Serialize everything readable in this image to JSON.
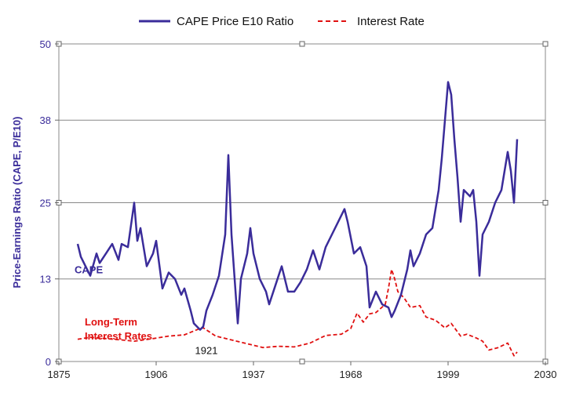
{
  "chart_data": {
    "type": "line",
    "title": "",
    "xlabel": "",
    "ylabel": "Price-Earnings Ratio (CAPE, P/E10)",
    "xlim": [
      1875,
      2030
    ],
    "ylim": [
      0,
      50
    ],
    "x_ticks": [
      "1875",
      "1906",
      "1937",
      "1968",
      "1999",
      "2030"
    ],
    "y_ticks": [
      "0",
      "13",
      "25",
      "38",
      "50"
    ],
    "grid": "horizontal",
    "legend_position": "top",
    "colors": {
      "cape": "#3a2c9a",
      "rate": "#e01010",
      "grid": "#888888"
    },
    "series": [
      {
        "name": "CAPE Price E10 Ratio",
        "style": "solid",
        "x": [
          1881,
          1882,
          1884,
          1885,
          1887,
          1888,
          1890,
          1892,
          1894,
          1895,
          1897,
          1899,
          1900,
          1901,
          1903,
          1905,
          1906,
          1908,
          1910,
          1912,
          1914,
          1915,
          1917,
          1918,
          1920,
          1921,
          1922,
          1924,
          1926,
          1928,
          1929,
          1930,
          1932,
          1933,
          1935,
          1936,
          1937,
          1939,
          1941,
          1942,
          1944,
          1946,
          1948,
          1950,
          1952,
          1954,
          1956,
          1958,
          1960,
          1962,
          1964,
          1966,
          1967,
          1969,
          1971,
          1973,
          1974,
          1976,
          1978,
          1980,
          1981,
          1982,
          1984,
          1986,
          1987,
          1988,
          1990,
          1992,
          1994,
          1996,
          1997,
          1998,
          1999,
          2000,
          2001,
          2002,
          2003,
          2004,
          2006,
          2007,
          2008,
          2009,
          2010,
          2012,
          2014,
          2016,
          2017,
          2018,
          2019,
          2020,
          2021
        ],
        "values": [
          18.5,
          16.5,
          14.5,
          13.5,
          17.0,
          15.5,
          17.0,
          18.5,
          16.0,
          18.5,
          18.0,
          25.0,
          19.0,
          21.0,
          15.0,
          17.0,
          19.0,
          11.5,
          14.0,
          13.0,
          10.5,
          11.5,
          8.0,
          6.0,
          5.0,
          5.5,
          8.0,
          10.5,
          13.5,
          20.0,
          32.5,
          20.0,
          6.0,
          13.0,
          17.0,
          21.0,
          17.0,
          13.0,
          11.0,
          9.0,
          12.0,
          15.0,
          11.0,
          11.0,
          12.5,
          14.5,
          17.5,
          14.5,
          18.0,
          20.0,
          22.0,
          24.0,
          22.0,
          17.0,
          18.0,
          15.0,
          8.5,
          11.0,
          9.0,
          8.5,
          7.0,
          8.0,
          10.5,
          14.5,
          17.5,
          15.0,
          17.0,
          20.0,
          21.0,
          27.0,
          32.0,
          38.0,
          44.0,
          42.0,
          35.0,
          29.0,
          22.0,
          27.0,
          26.0,
          27.0,
          22.0,
          13.5,
          20.0,
          22.0,
          25.0,
          27.0,
          30.0,
          33.0,
          30.0,
          25.0,
          35.0
        ]
      },
      {
        "name": "Interest Rate",
        "style": "dashed",
        "x": [
          1881,
          1885,
          1890,
          1895,
          1899,
          1905,
          1910,
          1915,
          1920,
          1921,
          1925,
          1930,
          1935,
          1940,
          1945,
          1950,
          1955,
          1960,
          1965,
          1968,
          1970,
          1972,
          1974,
          1976,
          1979,
          1980,
          1981,
          1982,
          1983,
          1985,
          1987,
          1990,
          1992,
          1995,
          1998,
          2000,
          2003,
          2005,
          2008,
          2010,
          2012,
          2015,
          2018,
          2020,
          2021
        ],
        "values": [
          3.5,
          3.8,
          3.6,
          3.4,
          3.2,
          3.6,
          4.0,
          4.2,
          5.2,
          5.3,
          4.0,
          3.4,
          2.8,
          2.2,
          2.4,
          2.3,
          2.9,
          4.1,
          4.3,
          5.2,
          7.6,
          6.2,
          7.5,
          7.7,
          9.0,
          11.5,
          14.5,
          13.0,
          11.0,
          10.0,
          8.5,
          8.8,
          7.0,
          6.5,
          5.3,
          6.0,
          4.0,
          4.3,
          3.7,
          3.2,
          1.8,
          2.2,
          2.9,
          0.9,
          1.5
        ]
      }
    ],
    "annotations": [
      {
        "text": "CAPE",
        "x": 1880,
        "y": 14.5,
        "color": "#3a2c9a"
      },
      {
        "text": "1921",
        "x": 1922,
        "y": 1.8,
        "color": "#111111"
      }
    ],
    "annotation_block": {
      "lines": [
        "Long-Term",
        "Interest Rates"
      ],
      "x": 1880,
      "y": 6.3,
      "color": "#e01010"
    }
  }
}
